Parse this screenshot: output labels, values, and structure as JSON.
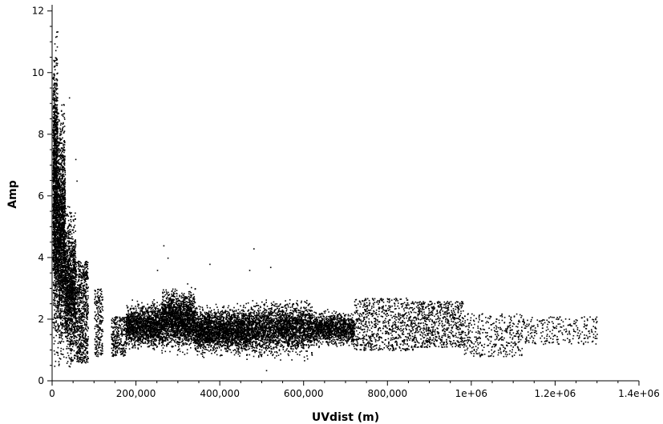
{
  "chart_data": {
    "type": "scatter",
    "title": "",
    "xlabel": "UVdist (m)",
    "ylabel": "Amp",
    "xlim": [
      0,
      1400000
    ],
    "ylim": [
      0,
      12.2
    ],
    "xticks": [
      {
        "value": 0,
        "label": "0"
      },
      {
        "value": 200000,
        "label": "200,000"
      },
      {
        "value": 400000,
        "label": "400,000"
      },
      {
        "value": 600000,
        "label": "600,000"
      },
      {
        "value": 800000,
        "label": "800,000"
      },
      {
        "value": 1000000,
        "label": "1e+06"
      },
      {
        "value": 1200000,
        "label": "1.2e+06"
      },
      {
        "value": 1400000,
        "label": "1.4e+06"
      }
    ],
    "yticks": [
      {
        "value": 0,
        "label": "0"
      },
      {
        "value": 2,
        "label": "2"
      },
      {
        "value": 4,
        "label": "4"
      },
      {
        "value": 6,
        "label": "6"
      },
      {
        "value": 8,
        "label": "8"
      },
      {
        "value": 10,
        "label": "10"
      },
      {
        "value": 12,
        "label": "12"
      }
    ],
    "grid": false,
    "marker_color": "#000000",
    "series": [
      {
        "clusters": [
          {
            "x": [
              1000,
              12000
            ],
            "y": [
              0,
              12.2
            ],
            "count": 1400,
            "density": "heavy"
          },
          {
            "x": [
              12000,
              30000
            ],
            "y": [
              0,
              9.5
            ],
            "count": 1600,
            "density": "heavy"
          },
          {
            "x": [
              30000,
              55000
            ],
            "y": [
              0,
              6.0
            ],
            "count": 1300,
            "density": "heavy"
          },
          {
            "x": [
              55000,
              85000
            ],
            "y": [
              0.6,
              3.9
            ],
            "count": 700,
            "density": "medium"
          },
          {
            "x": [
              100000,
              120000
            ],
            "y": [
              0.8,
              3.0
            ],
            "count": 200,
            "density": "light"
          },
          {
            "x": [
              140000,
              175000
            ],
            "y": [
              0.8,
              2.1
            ],
            "count": 250,
            "density": "light"
          },
          {
            "x": [
              175000,
              260000
            ],
            "y": [
              0.9,
              2.7
            ],
            "count": 1500,
            "density": "heavy"
          },
          {
            "x": [
              260000,
              340000
            ],
            "y": [
              0.8,
              3.2
            ],
            "count": 1800,
            "density": "heavy"
          },
          {
            "x": [
              340000,
              460000
            ],
            "y": [
              0.7,
              2.6
            ],
            "count": 2200,
            "density": "heavy"
          },
          {
            "x": [
              460000,
              620000
            ],
            "y": [
              0.6,
              2.8
            ],
            "count": 2400,
            "density": "heavy"
          },
          {
            "x": [
              620000,
              720000
            ],
            "y": [
              1.0,
              2.4
            ],
            "count": 1200,
            "density": "heavy"
          },
          {
            "x": [
              720000,
              860000
            ],
            "y": [
              1.0,
              2.7
            ],
            "count": 700,
            "density": "medium"
          },
          {
            "x": [
              860000,
              980000
            ],
            "y": [
              1.1,
              2.6
            ],
            "count": 650,
            "density": "medium"
          },
          {
            "x": [
              980000,
              1120000
            ],
            "y": [
              0.8,
              2.2
            ],
            "count": 350,
            "density": "light"
          },
          {
            "x": [
              1120000,
              1300000
            ],
            "y": [
              1.2,
              2.1
            ],
            "count": 250,
            "density": "light"
          }
        ],
        "outliers": [
          {
            "x": 40000,
            "y": 9.2
          },
          {
            "x": 55000,
            "y": 7.2
          },
          {
            "x": 58000,
            "y": 6.5
          },
          {
            "x": 265000,
            "y": 4.4
          },
          {
            "x": 275000,
            "y": 4.0
          },
          {
            "x": 375000,
            "y": 3.8
          },
          {
            "x": 470000,
            "y": 3.6
          },
          {
            "x": 480000,
            "y": 4.3
          },
          {
            "x": 520000,
            "y": 3.7
          },
          {
            "x": 510000,
            "y": 0.35
          },
          {
            "x": 250000,
            "y": 3.6
          }
        ]
      }
    ]
  }
}
